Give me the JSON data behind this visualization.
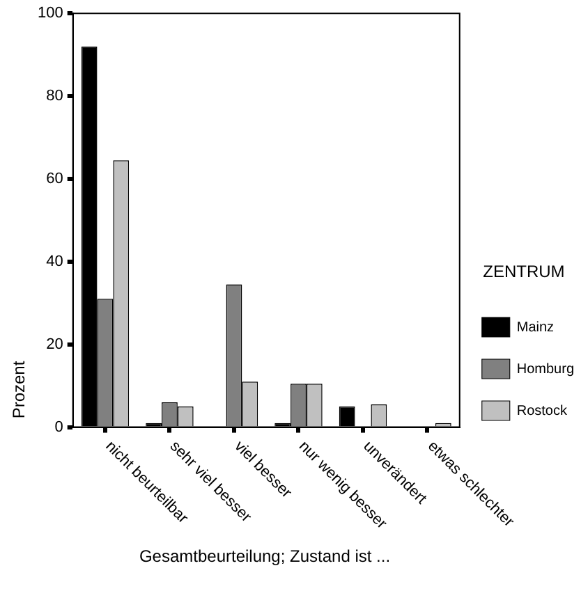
{
  "chart_data": {
    "type": "bar",
    "xlabel": "Gesamtbeurteilung; Zustand ist ...",
    "ylabel": "Prozent",
    "legend_title": "ZENTRUM",
    "categories": [
      "nicht beurteilbar",
      "sehr viel besser",
      "viel besser",
      "nur wenig besser",
      "unverändert",
      "etwas schlechter"
    ],
    "series": [
      {
        "name": "Mainz",
        "color": "#000000",
        "values": [
          92,
          1,
          null,
          1,
          5,
          null
        ]
      },
      {
        "name": "Homburg",
        "color": "#808080",
        "values": [
          31,
          6,
          34.5,
          10.5,
          null,
          null
        ]
      },
      {
        "name": "Rostock",
        "color": "#c0c0c0",
        "values": [
          64.5,
          5,
          11,
          10.5,
          5.5,
          1
        ]
      }
    ],
    "ylim": [
      0,
      100
    ],
    "yticks": [
      0,
      20,
      40,
      60,
      80,
      100
    ],
    "grid": false,
    "legend": "right"
  }
}
